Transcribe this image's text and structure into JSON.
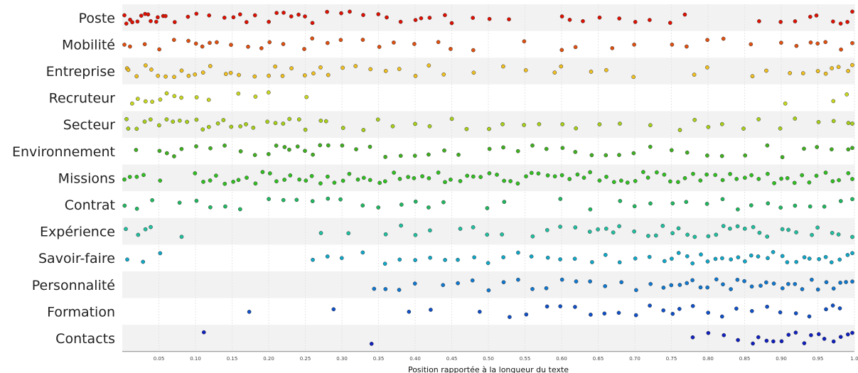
{
  "chart_data": {
    "type": "scatter",
    "title": "",
    "xlabel": "Position rapportée à la longueur du texte",
    "ylabel": "",
    "xlim": [
      0,
      1
    ],
    "x_ticks": [
      "0.05",
      "0.10",
      "0.15",
      "0.20",
      "0.25",
      "0.30",
      "0.35",
      "0.40",
      "0.45",
      "0.50",
      "0.55",
      "0.60",
      "0.65",
      "0.70",
      "0.75",
      "0.80",
      "0.85",
      "0.90",
      "0.95",
      "1.0"
    ],
    "grid": true,
    "legend": "none",
    "categories": [
      "Poste",
      "Mobilité",
      "Entreprise",
      "Recruteur",
      "Secteur",
      "Environnement",
      "Missions",
      "Contrat",
      "Expérience",
      "Savoir-faire",
      "Personnalité",
      "Formation",
      "Contacts"
    ],
    "series": [
      {
        "color": "#e01000",
        "points": [
          0.0,
          0.005,
          0.01,
          0.015,
          0.02,
          0.025,
          0.03,
          0.035,
          0.04,
          0.045,
          0.05,
          0.055,
          0.06,
          0.07,
          0.09,
          0.1,
          0.12,
          0.14,
          0.15,
          0.16,
          0.17,
          0.18,
          0.2,
          0.21,
          0.22,
          0.23,
          0.24,
          0.25,
          0.26,
          0.28,
          0.3,
          0.31,
          0.33,
          0.35,
          0.36,
          0.38,
          0.4,
          0.41,
          0.42,
          0.44,
          0.45,
          0.48,
          0.5,
          0.53,
          0.6,
          0.61,
          0.63,
          0.65,
          0.68,
          0.7,
          0.72,
          0.75,
          0.77,
          0.87,
          0.9,
          0.92,
          0.94,
          0.95,
          0.97,
          0.98,
          0.99,
          1.0
        ]
      },
      {
        "color": "#e05010",
        "points": [
          0.0,
          0.01,
          0.03,
          0.05,
          0.07,
          0.09,
          0.1,
          0.11,
          0.12,
          0.13,
          0.15,
          0.17,
          0.19,
          0.2,
          0.22,
          0.25,
          0.26,
          0.28,
          0.3,
          0.33,
          0.35,
          0.37,
          0.4,
          0.43,
          0.45,
          0.48,
          0.55,
          0.6,
          0.62,
          0.67,
          0.7,
          0.75,
          0.77,
          0.8,
          0.82,
          0.86,
          0.9,
          0.92,
          0.94,
          0.95,
          0.96,
          0.98,
          1.0
        ]
      },
      {
        "color": "#f0c020",
        "points": [
          0.005,
          0.01,
          0.02,
          0.03,
          0.04,
          0.05,
          0.06,
          0.07,
          0.08,
          0.09,
          0.1,
          0.11,
          0.12,
          0.14,
          0.15,
          0.16,
          0.18,
          0.2,
          0.21,
          0.22,
          0.23,
          0.25,
          0.26,
          0.27,
          0.28,
          0.3,
          0.32,
          0.34,
          0.36,
          0.38,
          0.4,
          0.42,
          0.44,
          0.48,
          0.52,
          0.55,
          0.59,
          0.6,
          0.64,
          0.66,
          0.7,
          0.78,
          0.8,
          0.86,
          0.88,
          0.91,
          0.93,
          0.95,
          0.96,
          0.97,
          0.98,
          0.99,
          1.0
        ]
      },
      {
        "color": "#c8d820",
        "points": [
          0.015,
          0.02,
          0.03,
          0.04,
          0.05,
          0.06,
          0.07,
          0.08,
          0.1,
          0.12,
          0.16,
          0.18,
          0.2,
          0.25,
          0.905,
          0.97,
          0.99
        ]
      },
      {
        "color": "#a8d018",
        "points": [
          0.005,
          0.01,
          0.02,
          0.03,
          0.04,
          0.05,
          0.06,
          0.07,
          0.08,
          0.09,
          0.1,
          0.11,
          0.12,
          0.13,
          0.14,
          0.15,
          0.16,
          0.17,
          0.18,
          0.2,
          0.21,
          0.22,
          0.23,
          0.24,
          0.25,
          0.27,
          0.28,
          0.3,
          0.33,
          0.35,
          0.37,
          0.4,
          0.42,
          0.45,
          0.47,
          0.5,
          0.52,
          0.55,
          0.57,
          0.6,
          0.62,
          0.65,
          0.68,
          0.72,
          0.76,
          0.78,
          0.8,
          0.82,
          0.85,
          0.87,
          0.9,
          0.92,
          0.95,
          0.97,
          0.99,
          1.0
        ]
      },
      {
        "color": "#40b020",
        "points": [
          0.02,
          0.05,
          0.06,
          0.07,
          0.08,
          0.1,
          0.12,
          0.14,
          0.16,
          0.18,
          0.2,
          0.21,
          0.22,
          0.23,
          0.24,
          0.25,
          0.26,
          0.27,
          0.28,
          0.3,
          0.32,
          0.34,
          0.36,
          0.38,
          0.4,
          0.42,
          0.44,
          0.46,
          0.5,
          0.52,
          0.54,
          0.56,
          0.58,
          0.6,
          0.62,
          0.64,
          0.66,
          0.68,
          0.7,
          0.72,
          0.75,
          0.77,
          0.8,
          0.82,
          0.85,
          0.88,
          0.9,
          0.93,
          0.95,
          0.97,
          0.99,
          1.0
        ]
      },
      {
        "color": "#30c020",
        "points": [
          0.0,
          0.01,
          0.02,
          0.03,
          0.05,
          0.1,
          0.11,
          0.12,
          0.13,
          0.14,
          0.15,
          0.16,
          0.17,
          0.18,
          0.19,
          0.2,
          0.21,
          0.22,
          0.23,
          0.24,
          0.25,
          0.26,
          0.27,
          0.28,
          0.29,
          0.3,
          0.31,
          0.32,
          0.33,
          0.34,
          0.35,
          0.36,
          0.37,
          0.38,
          0.39,
          0.4,
          0.41,
          0.42,
          0.43,
          0.44,
          0.45,
          0.46,
          0.47,
          0.48,
          0.49,
          0.5,
          0.51,
          0.52,
          0.53,
          0.54,
          0.55,
          0.56,
          0.57,
          0.58,
          0.59,
          0.6,
          0.61,
          0.62,
          0.63,
          0.64,
          0.65,
          0.66,
          0.67,
          0.68,
          0.69,
          0.7,
          0.71,
          0.72,
          0.73,
          0.74,
          0.75,
          0.76,
          0.77,
          0.78,
          0.79,
          0.8,
          0.81,
          0.82,
          0.83,
          0.84,
          0.85,
          0.86,
          0.87,
          0.88,
          0.89,
          0.9,
          0.91,
          0.92,
          0.93,
          0.94,
          0.95,
          0.96,
          0.97,
          0.98,
          0.99,
          1.0
        ]
      },
      {
        "color": "#20b860",
        "points": [
          0.005,
          0.02,
          0.04,
          0.08,
          0.1,
          0.12,
          0.14,
          0.16,
          0.2,
          0.22,
          0.24,
          0.26,
          0.28,
          0.3,
          0.33,
          0.35,
          0.38,
          0.4,
          0.42,
          0.44,
          0.5,
          0.52,
          0.6,
          0.64,
          0.68,
          0.7,
          0.72,
          0.75,
          0.77,
          0.8,
          0.82,
          0.84,
          0.86,
          0.88,
          0.9,
          0.92,
          0.94,
          0.96,
          0.98,
          1.0
        ]
      },
      {
        "color": "#20c0a0",
        "points": [
          0.005,
          0.02,
          0.03,
          0.04,
          0.08,
          0.27,
          0.31,
          0.36,
          0.38,
          0.4,
          0.42,
          0.46,
          0.48,
          0.5,
          0.52,
          0.56,
          0.58,
          0.6,
          0.62,
          0.64,
          0.65,
          0.66,
          0.67,
          0.68,
          0.7,
          0.72,
          0.73,
          0.74,
          0.75,
          0.76,
          0.77,
          0.78,
          0.8,
          0.81,
          0.82,
          0.83,
          0.84,
          0.85,
          0.86,
          0.87,
          0.88,
          0.9,
          0.91,
          0.92,
          0.94,
          0.95,
          0.97,
          0.98,
          1.0
        ]
      },
      {
        "color": "#10a8c8",
        "points": [
          0.005,
          0.03,
          0.05,
          0.26,
          0.28,
          0.3,
          0.33,
          0.36,
          0.38,
          0.4,
          0.42,
          0.44,
          0.46,
          0.48,
          0.5,
          0.52,
          0.54,
          0.56,
          0.58,
          0.6,
          0.62,
          0.64,
          0.66,
          0.68,
          0.7,
          0.72,
          0.74,
          0.75,
          0.76,
          0.77,
          0.78,
          0.79,
          0.8,
          0.81,
          0.82,
          0.83,
          0.84,
          0.85,
          0.86,
          0.87,
          0.88,
          0.89,
          0.9,
          0.91,
          0.92,
          0.93,
          0.94,
          0.95,
          0.96,
          0.97,
          0.98,
          0.99,
          1.0
        ]
      },
      {
        "color": "#1078d0",
        "points": [
          0.345,
          0.36,
          0.38,
          0.4,
          0.44,
          0.46,
          0.48,
          0.5,
          0.52,
          0.54,
          0.56,
          0.58,
          0.6,
          0.62,
          0.64,
          0.66,
          0.68,
          0.7,
          0.72,
          0.74,
          0.75,
          0.76,
          0.77,
          0.78,
          0.79,
          0.8,
          0.81,
          0.82,
          0.83,
          0.84,
          0.85,
          0.86,
          0.87,
          0.88,
          0.89,
          0.9,
          0.91,
          0.92,
          0.93,
          0.94,
          0.95,
          0.96,
          0.97,
          0.98,
          0.99,
          1.0
        ]
      },
      {
        "color": "#1050c8",
        "points": [
          0.175,
          0.29,
          0.39,
          0.42,
          0.49,
          0.53,
          0.55,
          0.58,
          0.6,
          0.62,
          0.64,
          0.66,
          0.68,
          0.7,
          0.72,
          0.74,
          0.75,
          0.76,
          0.78,
          0.8,
          0.82,
          0.84,
          0.86,
          0.88,
          0.9,
          0.92,
          0.94,
          0.96,
          0.97,
          0.98
        ]
      },
      {
        "color": "#1020c0",
        "points": [
          0.11,
          0.34,
          0.78,
          0.8,
          0.82,
          0.84,
          0.86,
          0.87,
          0.88,
          0.89,
          0.9,
          0.91,
          0.92,
          0.93,
          0.94,
          0.95,
          0.96,
          0.97,
          0.98,
          0.99,
          1.0
        ]
      }
    ]
  }
}
